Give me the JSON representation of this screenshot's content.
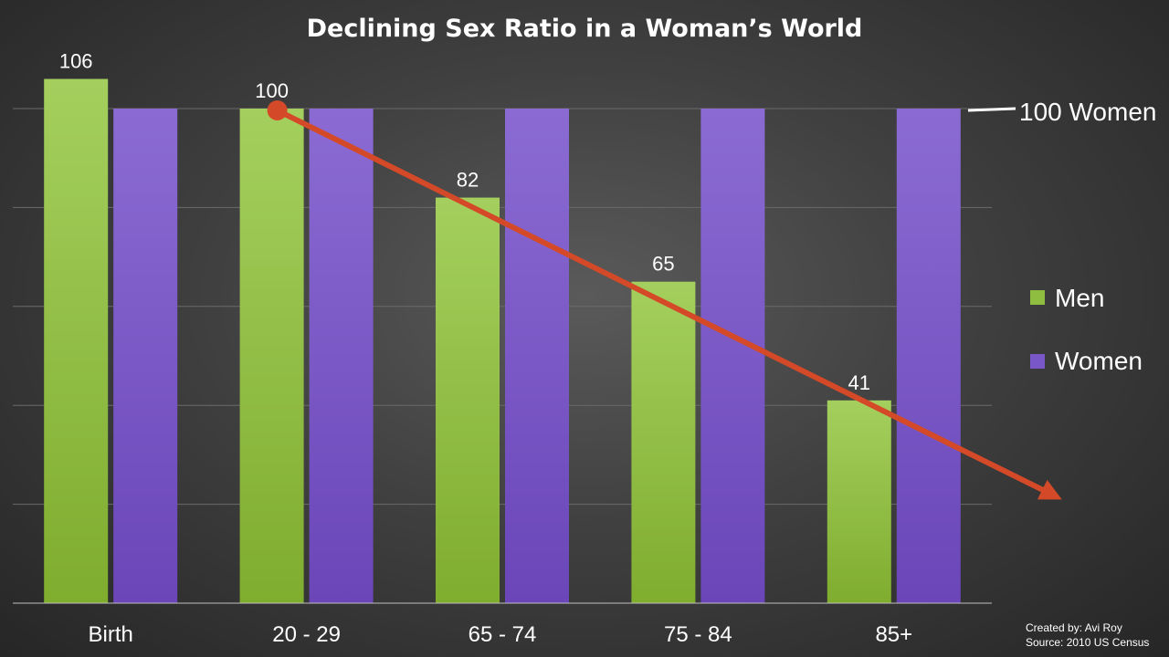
{
  "chart_data": {
    "type": "bar",
    "title": "Declining Sex Ratio in a Woman’s World",
    "categories": [
      "Birth",
      "20 - 29",
      "65 - 74",
      "75 - 84",
      "85+"
    ],
    "series": [
      {
        "name": "Men",
        "values": [
          106,
          100,
          82,
          65,
          41
        ],
        "color": "#8fbd3f"
      },
      {
        "name": "Women",
        "values": [
          100,
          100,
          100,
          100,
          100
        ],
        "color": "#7a57c8"
      }
    ],
    "data_labels": [
      "106",
      "100",
      "82",
      "65",
      "41"
    ],
    "ylim": [
      0,
      120
    ],
    "grid": true,
    "legend_position": "right",
    "reference_line": {
      "value": 100,
      "label": "100 Women",
      "color": "#ffffff"
    },
    "trend_arrow": {
      "from_category": "20 - 29",
      "from_value": 100,
      "direction": "down-right",
      "color": "#d44a28"
    },
    "xlabel": "",
    "ylabel": ""
  },
  "credits": {
    "created_by": "Created by: Avi Roy",
    "source": "Source: 2010 US Census"
  }
}
